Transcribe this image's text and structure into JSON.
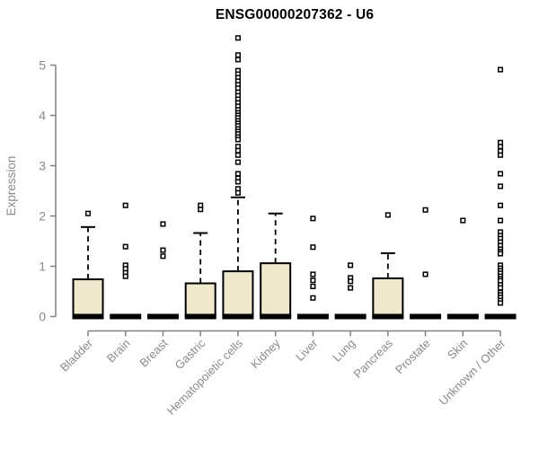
{
  "page": {
    "title": "ENSG00000207362 - U6"
  },
  "chart_data": {
    "type": "boxplot",
    "title": "ENSG00000207362 - U6",
    "xlabel": "",
    "ylabel": "Expression",
    "ylim": [
      0,
      5.6
    ],
    "yticks": [
      0,
      1,
      2,
      3,
      4,
      5
    ],
    "grid": false,
    "legend": "none",
    "categories": [
      "Bladder",
      "Brain",
      "Breast",
      "Gastric",
      "Hematopoietic cells",
      "Kidney",
      "Liver",
      "Lung",
      "Pancreas",
      "Prostate",
      "Skin",
      "Unknown / Other"
    ],
    "series": [
      {
        "category": "Bladder",
        "whisker_low": 0,
        "q1": 0,
        "median": 0,
        "q3": 0.74,
        "whisker_high": 1.78,
        "outliers": [
          2.05
        ]
      },
      {
        "category": "Brain",
        "whisker_low": 0,
        "q1": 0,
        "median": 0,
        "q3": 0,
        "whisker_high": 0,
        "outliers": [
          2.21,
          1.39,
          1.02,
          0.95,
          0.87,
          0.8
        ]
      },
      {
        "category": "Breast",
        "whisker_low": 0,
        "q1": 0,
        "median": 0,
        "q3": 0,
        "whisker_high": 0,
        "outliers": [
          1.84,
          1.32,
          1.2
        ]
      },
      {
        "category": "Gastric",
        "whisker_low": 0,
        "q1": 0,
        "median": 0,
        "q3": 0.66,
        "whisker_high": 1.66,
        "outliers": [
          2.21,
          2.13
        ]
      },
      {
        "category": "Hematopoietic cells",
        "whisker_low": 0,
        "q1": 0,
        "median": 0,
        "q3": 0.9,
        "whisker_high": 2.37,
        "outliers": [
          5.54,
          5.2,
          5.11,
          4.89,
          4.82,
          4.75,
          4.68,
          4.61,
          4.54,
          4.46,
          4.39,
          4.32,
          4.25,
          4.18,
          4.11,
          4.05,
          4.0,
          3.95,
          3.89,
          3.84,
          3.79,
          3.73,
          3.68,
          3.63,
          3.57,
          3.52,
          3.38,
          3.3,
          3.21,
          3.07,
          2.84,
          2.75,
          2.68,
          2.54,
          2.46
        ]
      },
      {
        "category": "Kidney",
        "whisker_low": 0,
        "q1": 0,
        "median": 0,
        "q3": 1.06,
        "whisker_high": 2.05,
        "outliers": []
      },
      {
        "category": "Liver",
        "whisker_low": 0,
        "q1": 0,
        "median": 0,
        "q3": 0,
        "whisker_high": 0,
        "outliers": [
          1.95,
          1.38,
          0.84,
          0.72,
          0.6,
          0.37
        ]
      },
      {
        "category": "Lung",
        "whisker_low": 0,
        "q1": 0,
        "median": 0,
        "q3": 0,
        "whisker_high": 0,
        "outliers": [
          1.02,
          0.77,
          0.7,
          0.57
        ]
      },
      {
        "category": "Pancreas",
        "whisker_low": 0,
        "q1": 0,
        "median": 0,
        "q3": 0.76,
        "whisker_high": 1.26,
        "outliers": [
          2.02
        ]
      },
      {
        "category": "Prostate",
        "whisker_low": 0,
        "q1": 0,
        "median": 0,
        "q3": 0,
        "whisker_high": 0,
        "outliers": [
          2.12,
          0.84
        ]
      },
      {
        "category": "Skin",
        "whisker_low": 0,
        "q1": 0,
        "median": 0,
        "q3": 0,
        "whisker_high": 0,
        "outliers": [
          1.91
        ]
      },
      {
        "category": "Unknown / Other",
        "whisker_low": 0,
        "q1": 0,
        "median": 0,
        "q3": 0,
        "whisker_high": 0,
        "outliers": [
          4.91,
          3.46,
          3.38,
          3.29,
          3.21,
          2.84,
          2.59,
          2.21,
          1.91,
          1.68,
          1.61,
          1.55,
          1.48,
          1.41,
          1.34,
          1.29,
          1.25,
          1.02,
          0.96,
          0.91,
          0.86,
          0.8,
          0.75,
          0.71,
          0.63,
          0.57,
          0.48,
          0.43,
          0.38,
          0.32,
          0.27
        ]
      }
    ],
    "colors": {
      "box_fill": "#efe8cd",
      "box_border": "#000000",
      "median": "#000000",
      "whisker": "#000000",
      "outlier_fill": "#ffffff",
      "axis": "#808080",
      "tick_label": "#8a8a8a",
      "title": "#000000"
    }
  }
}
